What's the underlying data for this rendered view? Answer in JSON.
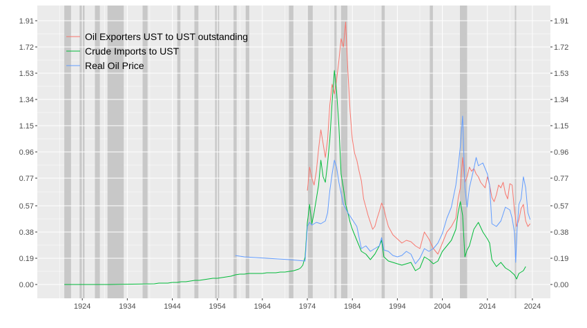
{
  "chart_data": {
    "type": "line",
    "title": "",
    "xlabel": "",
    "ylabel": "",
    "xlim": [
      1914,
      2028
    ],
    "ylim": [
      -0.1,
      2.02
    ],
    "grid": true,
    "legend_position": "top-left",
    "x_ticks": [
      1924,
      1934,
      1944,
      1954,
      1964,
      1974,
      1984,
      1994,
      2004,
      2014,
      2024
    ],
    "y_ticks": [
      "0.00",
      "0.19",
      "0.38",
      "0.57",
      "0.77",
      "0.96",
      "1.15",
      "1.34",
      "1.53",
      "1.72",
      "1.91"
    ],
    "y_tick_values": [
      0.0,
      0.19,
      0.38,
      0.57,
      0.77,
      0.96,
      1.15,
      1.34,
      1.53,
      1.72,
      1.91
    ],
    "recessions": [
      [
        1920.0,
        1921.5
      ],
      [
        1923.4,
        1924.5
      ],
      [
        1926.8,
        1927.9
      ],
      [
        1929.6,
        1933.2
      ],
      [
        1937.4,
        1938.5
      ],
      [
        1945.1,
        1945.8
      ],
      [
        1948.9,
        1949.8
      ],
      [
        1953.5,
        1954.4
      ],
      [
        1957.6,
        1958.3
      ],
      [
        1960.3,
        1961.1
      ],
      [
        1969.9,
        1970.9
      ],
      [
        1973.9,
        1975.2
      ],
      [
        1980.0,
        1980.5
      ],
      [
        1981.5,
        1982.9
      ],
      [
        1990.5,
        1991.2
      ],
      [
        2001.2,
        2001.9
      ],
      [
        2007.9,
        2009.5
      ],
      [
        2020.1,
        2020.4
      ]
    ],
    "series": [
      {
        "name": "Oil Exporters UST to UST outstanding",
        "color": "#F8766D",
        "x": [
          1974.0,
          1974.5,
          1975.0,
          1975.5,
          1976.0,
          1976.5,
          1977.0,
          1977.5,
          1978.0,
          1978.5,
          1979.0,
          1979.5,
          1980.0,
          1980.5,
          1981.0,
          1981.5,
          1982.0,
          1982.5,
          1983.0,
          1983.5,
          1984.0,
          1984.5,
          1985.0,
          1985.5,
          1986.0,
          1986.5,
          1987.0,
          1987.5,
          1988.0,
          1988.5,
          1989.0,
          1989.5,
          1990.0,
          1990.5,
          1991.0,
          1991.5,
          1992.0,
          1993.0,
          1994.0,
          1995.0,
          1996.0,
          1997.0,
          1998.0,
          1999.0,
          2000.0,
          2001.0,
          2002.0,
          2003.0,
          2004.0,
          2005.0,
          2006.0,
          2007.0,
          2007.5,
          2008.0,
          2008.5,
          2009.0,
          2009.5,
          2010.0,
          2010.5,
          2011.0,
          2011.5,
          2012.0,
          2012.5,
          2013.0,
          2013.5,
          2014.0,
          2014.5,
          2015.0,
          2015.5,
          2016.0,
          2016.5,
          2017.0,
          2017.5,
          2018.0,
          2018.5,
          2019.0,
          2019.5,
          2020.0,
          2020.5,
          2021.0,
          2021.5,
          2022.0,
          2022.5,
          2023.0,
          2023.5
        ],
        "y": [
          0.68,
          0.85,
          0.77,
          0.72,
          0.82,
          0.98,
          1.12,
          1.02,
          0.92,
          1.05,
          1.3,
          1.45,
          1.38,
          1.48,
          1.62,
          1.78,
          1.72,
          1.9,
          1.55,
          1.25,
          1.05,
          0.95,
          0.9,
          0.82,
          0.75,
          0.62,
          0.56,
          0.5,
          0.45,
          0.4,
          0.42,
          0.48,
          0.53,
          0.59,
          0.55,
          0.48,
          0.42,
          0.36,
          0.33,
          0.3,
          0.32,
          0.31,
          0.28,
          0.26,
          0.38,
          0.33,
          0.26,
          0.22,
          0.3,
          0.38,
          0.42,
          0.48,
          0.62,
          0.7,
          0.92,
          0.74,
          0.78,
          0.85,
          0.82,
          0.84,
          0.8,
          0.78,
          0.74,
          0.72,
          0.7,
          0.78,
          0.72,
          0.63,
          0.6,
          0.65,
          0.72,
          0.7,
          0.74,
          0.66,
          0.62,
          0.73,
          0.72,
          0.54,
          0.42,
          0.47,
          0.55,
          0.58,
          0.46,
          0.42,
          0.44
        ]
      },
      {
        "name": "Crude Imports to UST",
        "color": "#00BA38",
        "x": [
          1920.0,
          1930.0,
          1940.0,
          1941.0,
          1942.0,
          1943.0,
          1944.0,
          1945.0,
          1946.0,
          1947.0,
          1948.0,
          1949.0,
          1950.0,
          1951.0,
          1952.0,
          1953.0,
          1954.0,
          1955.0,
          1956.0,
          1957.0,
          1958.0,
          1959.0,
          1960.0,
          1961.0,
          1962.0,
          1963.0,
          1964.0,
          1965.0,
          1966.0,
          1967.0,
          1968.0,
          1969.0,
          1970.0,
          1971.0,
          1972.0,
          1972.5,
          1973.0,
          1973.5,
          1974.0,
          1974.5,
          1975.0,
          1975.5,
          1976.0,
          1976.5,
          1977.0,
          1977.5,
          1978.0,
          1978.5,
          1979.0,
          1979.5,
          1980.0,
          1980.5,
          1981.0,
          1981.5,
          1982.0,
          1982.5,
          1983.0,
          1983.5,
          1984.0,
          1985.0,
          1986.0,
          1987.0,
          1988.0,
          1989.0,
          1990.0,
          1990.5,
          1991.0,
          1992.0,
          1993.0,
          1994.0,
          1995.0,
          1996.0,
          1997.0,
          1998.0,
          1999.0,
          2000.0,
          2001.0,
          2002.0,
          2003.0,
          2004.0,
          2005.0,
          2006.0,
          2007.0,
          2007.5,
          2008.0,
          2008.5,
          2009.0,
          2009.5,
          2010.0,
          2011.0,
          2012.0,
          2013.0,
          2014.0,
          2014.5,
          2015.0,
          2016.0,
          2017.0,
          2018.0,
          2019.0,
          2020.0,
          2020.5,
          2021.0,
          2022.0,
          2022.5
        ],
        "y": [
          0.0,
          0.0,
          0.005,
          0.01,
          0.01,
          0.01,
          0.015,
          0.015,
          0.02,
          0.02,
          0.025,
          0.03,
          0.03,
          0.035,
          0.04,
          0.045,
          0.045,
          0.05,
          0.055,
          0.06,
          0.07,
          0.075,
          0.075,
          0.08,
          0.08,
          0.08,
          0.08,
          0.085,
          0.085,
          0.085,
          0.09,
          0.09,
          0.095,
          0.1,
          0.11,
          0.12,
          0.14,
          0.2,
          0.45,
          0.58,
          0.44,
          0.52,
          0.62,
          0.72,
          0.9,
          0.78,
          0.74,
          0.88,
          1.05,
          1.32,
          1.55,
          1.4,
          1.15,
          0.8,
          0.7,
          0.58,
          0.52,
          0.45,
          0.4,
          0.32,
          0.24,
          0.22,
          0.18,
          0.22,
          0.28,
          0.32,
          0.2,
          0.17,
          0.16,
          0.15,
          0.14,
          0.15,
          0.16,
          0.1,
          0.12,
          0.2,
          0.18,
          0.15,
          0.17,
          0.24,
          0.28,
          0.32,
          0.4,
          0.52,
          0.6,
          0.5,
          0.2,
          0.25,
          0.28,
          0.4,
          0.45,
          0.38,
          0.33,
          0.3,
          0.18,
          0.13,
          0.16,
          0.12,
          0.1,
          0.07,
          0.04,
          0.08,
          0.1,
          0.13
        ]
      },
      {
        "name": "Real Oil Price",
        "color": "#619CFF",
        "x": [
          1958.0,
          1960.0,
          1965.0,
          1970.0,
          1973.5,
          1974.0,
          1974.5,
          1975.0,
          1976.0,
          1977.0,
          1978.0,
          1978.5,
          1979.0,
          1979.5,
          1980.0,
          1980.5,
          1981.0,
          1981.5,
          1982.0,
          1982.5,
          1983.0,
          1984.0,
          1985.0,
          1986.0,
          1987.0,
          1988.0,
          1989.0,
          1990.0,
          1990.5,
          1991.0,
          1992.0,
          1993.0,
          1994.0,
          1995.0,
          1996.0,
          1997.0,
          1998.0,
          1999.0,
          2000.0,
          2001.0,
          2002.0,
          2003.0,
          2004.0,
          2005.0,
          2006.0,
          2007.0,
          2007.5,
          2008.0,
          2008.5,
          2009.0,
          2009.5,
          2010.0,
          2011.0,
          2011.5,
          2012.0,
          2013.0,
          2014.0,
          2014.5,
          2015.0,
          2016.0,
          2017.0,
          2018.0,
          2019.0,
          2019.5,
          2020.0,
          2020.3,
          2020.6,
          2021.0,
          2021.5,
          2022.0,
          2022.5,
          2023.0,
          2023.5
        ],
        "y": [
          0.21,
          0.2,
          0.19,
          0.18,
          0.17,
          0.42,
          0.45,
          0.43,
          0.45,
          0.44,
          0.46,
          0.52,
          0.68,
          0.8,
          0.9,
          0.85,
          0.74,
          0.66,
          0.58,
          0.55,
          0.52,
          0.47,
          0.42,
          0.26,
          0.28,
          0.24,
          0.26,
          0.28,
          0.34,
          0.25,
          0.24,
          0.21,
          0.2,
          0.21,
          0.24,
          0.22,
          0.15,
          0.19,
          0.26,
          0.24,
          0.26,
          0.3,
          0.37,
          0.48,
          0.56,
          0.72,
          0.85,
          1.0,
          1.22,
          0.7,
          0.56,
          0.7,
          0.84,
          0.92,
          0.86,
          0.88,
          0.8,
          0.72,
          0.44,
          0.42,
          0.46,
          0.56,
          0.54,
          0.48,
          0.38,
          0.16,
          0.4,
          0.58,
          0.62,
          0.78,
          0.7,
          0.52,
          0.47
        ]
      }
    ]
  }
}
